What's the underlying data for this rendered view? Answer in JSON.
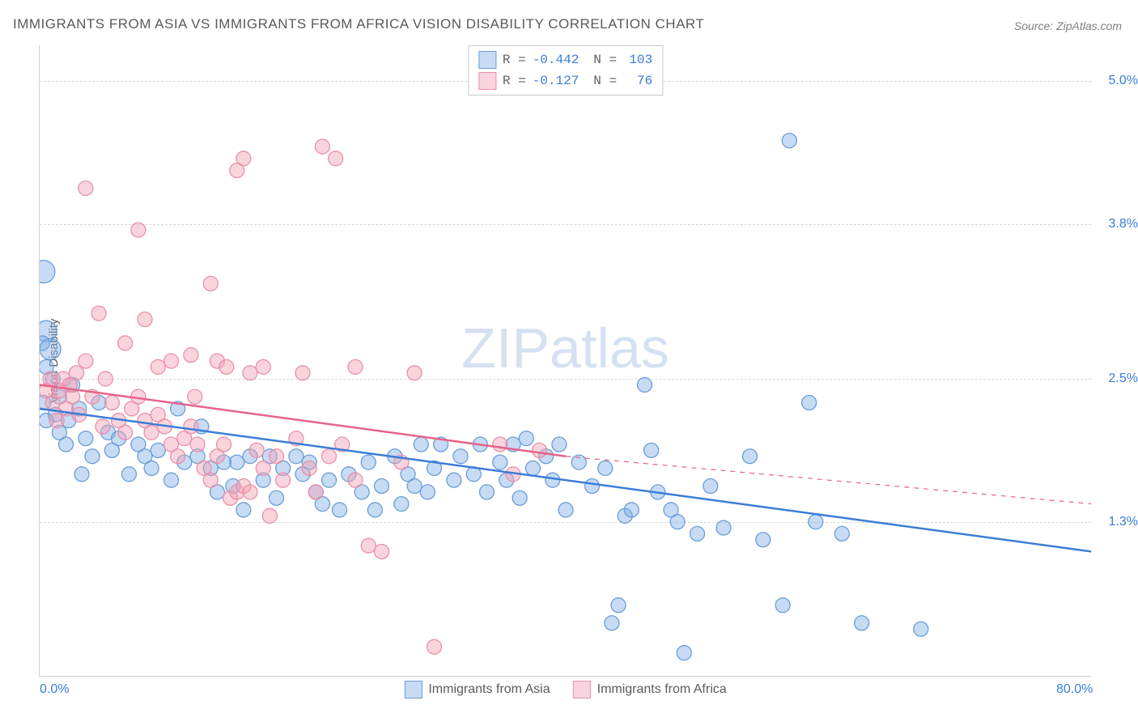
{
  "title": "IMMIGRANTS FROM ASIA VS IMMIGRANTS FROM AFRICA VISION DISABILITY CORRELATION CHART",
  "source": "Source: ZipAtlas.com",
  "ylabel": "Vision Disability",
  "watermark_zip": "ZIP",
  "watermark_atlas": "atlas",
  "chart": {
    "type": "scatter",
    "xlim": [
      0,
      80
    ],
    "ylim": [
      0,
      5.3
    ],
    "xticks": [
      {
        "value": 0,
        "label": "0.0%"
      },
      {
        "value": 80,
        "label": "80.0%"
      }
    ],
    "yticks": [
      {
        "value": 1.3,
        "label": "1.3%"
      },
      {
        "value": 2.5,
        "label": "2.5%"
      },
      {
        "value": 3.8,
        "label": "3.8%"
      },
      {
        "value": 5.0,
        "label": "5.0%"
      }
    ],
    "gridline_color": "#d8d8d8",
    "background_color": "#ffffff",
    "marker_radius": 9,
    "marker_radius_large": 14,
    "marker_stroke_width": 1.3,
    "trend_line_width": 2.5,
    "series": [
      {
        "name": "Immigrants from Asia",
        "label": "Immigrants from Asia",
        "fill": "rgba(130, 175, 230, 0.45)",
        "stroke": "#6a9ed8",
        "line_color": "#3b7dd8",
        "R": "-0.442",
        "N": "103",
        "trend": {
          "x1": 0,
          "y1": 2.25,
          "x2": 80,
          "y2": 1.05
        },
        "trend_dash_from_x": 80,
        "points": [
          {
            "x": 0.3,
            "y": 3.4,
            "r": 14
          },
          {
            "x": 0.5,
            "y": 2.9,
            "r": 13
          },
          {
            "x": 0.2,
            "y": 2.8
          },
          {
            "x": 0.8,
            "y": 2.75,
            "r": 13
          },
          {
            "x": 0.5,
            "y": 2.6
          },
          {
            "x": 1.0,
            "y": 2.5
          },
          {
            "x": 1.5,
            "y": 2.35
          },
          {
            "x": 0.3,
            "y": 2.3
          },
          {
            "x": 2.5,
            "y": 2.45
          },
          {
            "x": 1.2,
            "y": 2.2
          },
          {
            "x": 3.0,
            "y": 2.25
          },
          {
            "x": 2.2,
            "y": 2.15
          },
          {
            "x": 4.5,
            "y": 2.3
          },
          {
            "x": 3.5,
            "y": 2.0
          },
          {
            "x": 5.2,
            "y": 2.05
          },
          {
            "x": 6.0,
            "y": 2.0
          },
          {
            "x": 5.5,
            "y": 1.9
          },
          {
            "x": 7.5,
            "y": 1.95
          },
          {
            "x": 8.0,
            "y": 1.85
          },
          {
            "x": 6.8,
            "y": 1.7
          },
          {
            "x": 9.0,
            "y": 1.9
          },
          {
            "x": 8.5,
            "y": 1.75
          },
          {
            "x": 10.5,
            "y": 2.25
          },
          {
            "x": 11.0,
            "y": 1.8
          },
          {
            "x": 12.0,
            "y": 1.85
          },
          {
            "x": 10.0,
            "y": 1.65
          },
          {
            "x": 13.0,
            "y": 1.75
          },
          {
            "x": 12.3,
            "y": 2.1
          },
          {
            "x": 14.0,
            "y": 1.8
          },
          {
            "x": 13.5,
            "y": 1.55
          },
          {
            "x": 15.0,
            "y": 1.8
          },
          {
            "x": 14.7,
            "y": 1.6
          },
          {
            "x": 16.0,
            "y": 1.85
          },
          {
            "x": 15.5,
            "y": 1.4
          },
          {
            "x": 17.5,
            "y": 1.85
          },
          {
            "x": 17.0,
            "y": 1.65
          },
          {
            "x": 18.5,
            "y": 1.75
          },
          {
            "x": 18.0,
            "y": 1.5
          },
          {
            "x": 19.5,
            "y": 1.85
          },
          {
            "x": 20.0,
            "y": 1.7
          },
          {
            "x": 20.5,
            "y": 1.8
          },
          {
            "x": 21.0,
            "y": 1.55
          },
          {
            "x": 22.0,
            "y": 1.65
          },
          {
            "x": 21.5,
            "y": 1.45
          },
          {
            "x": 23.5,
            "y": 1.7
          },
          {
            "x": 22.8,
            "y": 1.4
          },
          {
            "x": 24.5,
            "y": 1.55
          },
          {
            "x": 25.0,
            "y": 1.8
          },
          {
            "x": 25.5,
            "y": 1.4
          },
          {
            "x": 26.0,
            "y": 1.6
          },
          {
            "x": 27.0,
            "y": 1.85
          },
          {
            "x": 27.5,
            "y": 1.45
          },
          {
            "x": 28.0,
            "y": 1.7
          },
          {
            "x": 28.5,
            "y": 1.6
          },
          {
            "x": 29.0,
            "y": 1.95
          },
          {
            "x": 29.5,
            "y": 1.55
          },
          {
            "x": 30.0,
            "y": 1.75
          },
          {
            "x": 30.5,
            "y": 1.95
          },
          {
            "x": 31.5,
            "y": 1.65
          },
          {
            "x": 32.0,
            "y": 1.85
          },
          {
            "x": 33.0,
            "y": 1.7
          },
          {
            "x": 33.5,
            "y": 1.95
          },
          {
            "x": 34.0,
            "y": 1.55
          },
          {
            "x": 35.0,
            "y": 1.8
          },
          {
            "x": 35.5,
            "y": 1.65
          },
          {
            "x": 36.0,
            "y": 1.95
          },
          {
            "x": 36.5,
            "y": 1.5
          },
          {
            "x": 37.0,
            "y": 2.0
          },
          {
            "x": 37.5,
            "y": 1.75
          },
          {
            "x": 38.5,
            "y": 1.85
          },
          {
            "x": 39.0,
            "y": 1.65
          },
          {
            "x": 39.5,
            "y": 1.95
          },
          {
            "x": 40.0,
            "y": 1.4
          },
          {
            "x": 41.0,
            "y": 1.8
          },
          {
            "x": 42.0,
            "y": 1.6
          },
          {
            "x": 43.0,
            "y": 1.75
          },
          {
            "x": 44.5,
            "y": 1.35
          },
          {
            "x": 45.0,
            "y": 1.4
          },
          {
            "x": 46.0,
            "y": 2.45
          },
          {
            "x": 47.0,
            "y": 1.55
          },
          {
            "x": 48.0,
            "y": 1.4
          },
          {
            "x": 48.5,
            "y": 1.3
          },
          {
            "x": 49.0,
            "y": 0.2
          },
          {
            "x": 50.0,
            "y": 1.2
          },
          {
            "x": 51.0,
            "y": 1.6
          },
          {
            "x": 52.0,
            "y": 1.25
          },
          {
            "x": 54.0,
            "y": 1.85
          },
          {
            "x": 55.0,
            "y": 1.15
          },
          {
            "x": 56.5,
            "y": 0.6
          },
          {
            "x": 57.0,
            "y": 4.5
          },
          {
            "x": 58.5,
            "y": 2.3
          },
          {
            "x": 59.0,
            "y": 1.3
          },
          {
            "x": 61.0,
            "y": 1.2
          },
          {
            "x": 62.5,
            "y": 0.45
          },
          {
            "x": 67.0,
            "y": 0.4
          },
          {
            "x": 44.0,
            "y": 0.6
          },
          {
            "x": 43.5,
            "y": 0.45
          },
          {
            "x": 0.5,
            "y": 2.15
          },
          {
            "x": 1.5,
            "y": 2.05
          },
          {
            "x": 2.0,
            "y": 1.95
          },
          {
            "x": 4.0,
            "y": 1.85
          },
          {
            "x": 3.2,
            "y": 1.7
          },
          {
            "x": 46.5,
            "y": 1.9
          }
        ]
      },
      {
        "name": "Immigrants from Africa",
        "label": "Immigrants from Africa",
        "fill": "rgba(245, 160, 180, 0.45)",
        "stroke": "#e990a8",
        "line_color": "#e6638a",
        "R": "-0.127",
        "N": "76",
        "trend": {
          "x1": 0,
          "y1": 2.45,
          "x2": 40,
          "y2": 1.85
        },
        "trend_dash_from_x": 40,
        "trend_dash_to": {
          "x": 80,
          "y": 1.45
        },
        "points": [
          {
            "x": 3.5,
            "y": 4.1
          },
          {
            "x": 15.5,
            "y": 4.35
          },
          {
            "x": 15.0,
            "y": 4.25
          },
          {
            "x": 21.5,
            "y": 4.45
          },
          {
            "x": 22.5,
            "y": 4.35
          },
          {
            "x": 7.5,
            "y": 3.75
          },
          {
            "x": 13.0,
            "y": 3.3
          },
          {
            "x": 8.0,
            "y": 3.0
          },
          {
            "x": 4.5,
            "y": 3.05
          },
          {
            "x": 6.5,
            "y": 2.8
          },
          {
            "x": 2.8,
            "y": 2.55
          },
          {
            "x": 3.5,
            "y": 2.65
          },
          {
            "x": 9.0,
            "y": 2.6
          },
          {
            "x": 10.0,
            "y": 2.65
          },
          {
            "x": 11.5,
            "y": 2.7
          },
          {
            "x": 13.5,
            "y": 2.65
          },
          {
            "x": 14.2,
            "y": 2.6
          },
          {
            "x": 16.0,
            "y": 2.55
          },
          {
            "x": 17.0,
            "y": 2.6
          },
          {
            "x": 20.0,
            "y": 2.55
          },
          {
            "x": 24.0,
            "y": 2.6
          },
          {
            "x": 28.5,
            "y": 2.55
          },
          {
            "x": 0.5,
            "y": 2.4
          },
          {
            "x": 1.0,
            "y": 2.3
          },
          {
            "x": 1.5,
            "y": 2.4
          },
          {
            "x": 2.0,
            "y": 2.25
          },
          {
            "x": 2.5,
            "y": 2.35
          },
          {
            "x": 3.0,
            "y": 2.2
          },
          {
            "x": 4.0,
            "y": 2.35
          },
          {
            "x": 4.8,
            "y": 2.1
          },
          {
            "x": 5.5,
            "y": 2.3
          },
          {
            "x": 6.0,
            "y": 2.15
          },
          {
            "x": 6.5,
            "y": 2.05
          },
          {
            "x": 7.0,
            "y": 2.25
          },
          {
            "x": 7.5,
            "y": 2.35
          },
          {
            "x": 8.0,
            "y": 2.15
          },
          {
            "x": 8.5,
            "y": 2.05
          },
          {
            "x": 9.0,
            "y": 2.2
          },
          {
            "x": 9.5,
            "y": 2.1
          },
          {
            "x": 10.0,
            "y": 1.95
          },
          {
            "x": 10.5,
            "y": 1.85
          },
          {
            "x": 11.0,
            "y": 2.0
          },
          {
            "x": 11.5,
            "y": 2.1
          },
          {
            "x": 12.0,
            "y": 1.95
          },
          {
            "x": 12.5,
            "y": 1.75
          },
          {
            "x": 13.0,
            "y": 1.65
          },
          {
            "x": 13.5,
            "y": 1.85
          },
          {
            "x": 14.0,
            "y": 1.95
          },
          {
            "x": 14.5,
            "y": 1.5
          },
          {
            "x": 15.0,
            "y": 1.55
          },
          {
            "x": 15.5,
            "y": 1.6
          },
          {
            "x": 16.0,
            "y": 1.55
          },
          {
            "x": 16.5,
            "y": 1.9
          },
          {
            "x": 17.0,
            "y": 1.75
          },
          {
            "x": 17.5,
            "y": 1.35
          },
          {
            "x": 18.0,
            "y": 1.85
          },
          {
            "x": 18.5,
            "y": 1.65
          },
          {
            "x": 19.5,
            "y": 2.0
          },
          {
            "x": 20.5,
            "y": 1.75
          },
          {
            "x": 21.0,
            "y": 1.55
          },
          {
            "x": 22.0,
            "y": 1.85
          },
          {
            "x": 23.0,
            "y": 1.95
          },
          {
            "x": 24.0,
            "y": 1.65
          },
          {
            "x": 25.0,
            "y": 1.1
          },
          {
            "x": 26.0,
            "y": 1.05
          },
          {
            "x": 27.5,
            "y": 1.8
          },
          {
            "x": 30.0,
            "y": 0.25
          },
          {
            "x": 35.0,
            "y": 1.95
          },
          {
            "x": 36.0,
            "y": 1.7
          },
          {
            "x": 38.0,
            "y": 1.9
          },
          {
            "x": 1.8,
            "y": 2.5
          },
          {
            "x": 2.3,
            "y": 2.45
          },
          {
            "x": 5.0,
            "y": 2.5
          },
          {
            "x": 0.8,
            "y": 2.5
          },
          {
            "x": 1.3,
            "y": 2.15
          },
          {
            "x": 11.8,
            "y": 2.35
          }
        ]
      }
    ]
  }
}
